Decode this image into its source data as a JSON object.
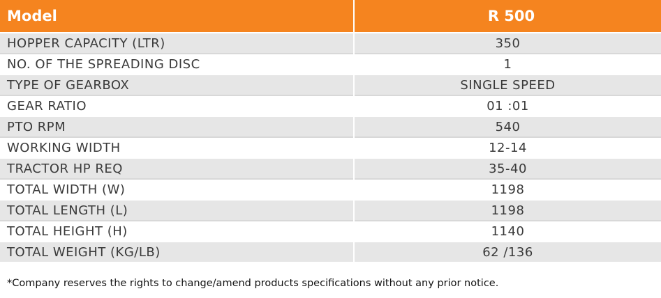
{
  "table": {
    "header": [
      "Model",
      "R 500"
    ],
    "rows": [
      [
        "HOPPER CAPACITY (LTR)",
        "350"
      ],
      [
        "NO. OF THE SPREADING DISC",
        "1"
      ],
      [
        "TYPE OF GEARBOX",
        "SINGLE SPEED"
      ],
      [
        "GEAR RATIO",
        "01 :01"
      ],
      [
        "PTO RPM",
        "540"
      ],
      [
        "WORKING WIDTH",
        "12-14"
      ],
      [
        "TRACTOR HP REQ",
        "35-40"
      ],
      [
        "TOTAL WIDTH (W)",
        "1198"
      ],
      [
        "TOTAL LENGTH (L)",
        "1198"
      ],
      [
        "TOTAL HEIGHT (H)",
        "1140"
      ],
      [
        "TOTAL WEIGHT (KG/LB)",
        "62 /136"
      ]
    ]
  },
  "footnote": "*Company reserves the rights to change/amend products specifications without any prior notice."
}
